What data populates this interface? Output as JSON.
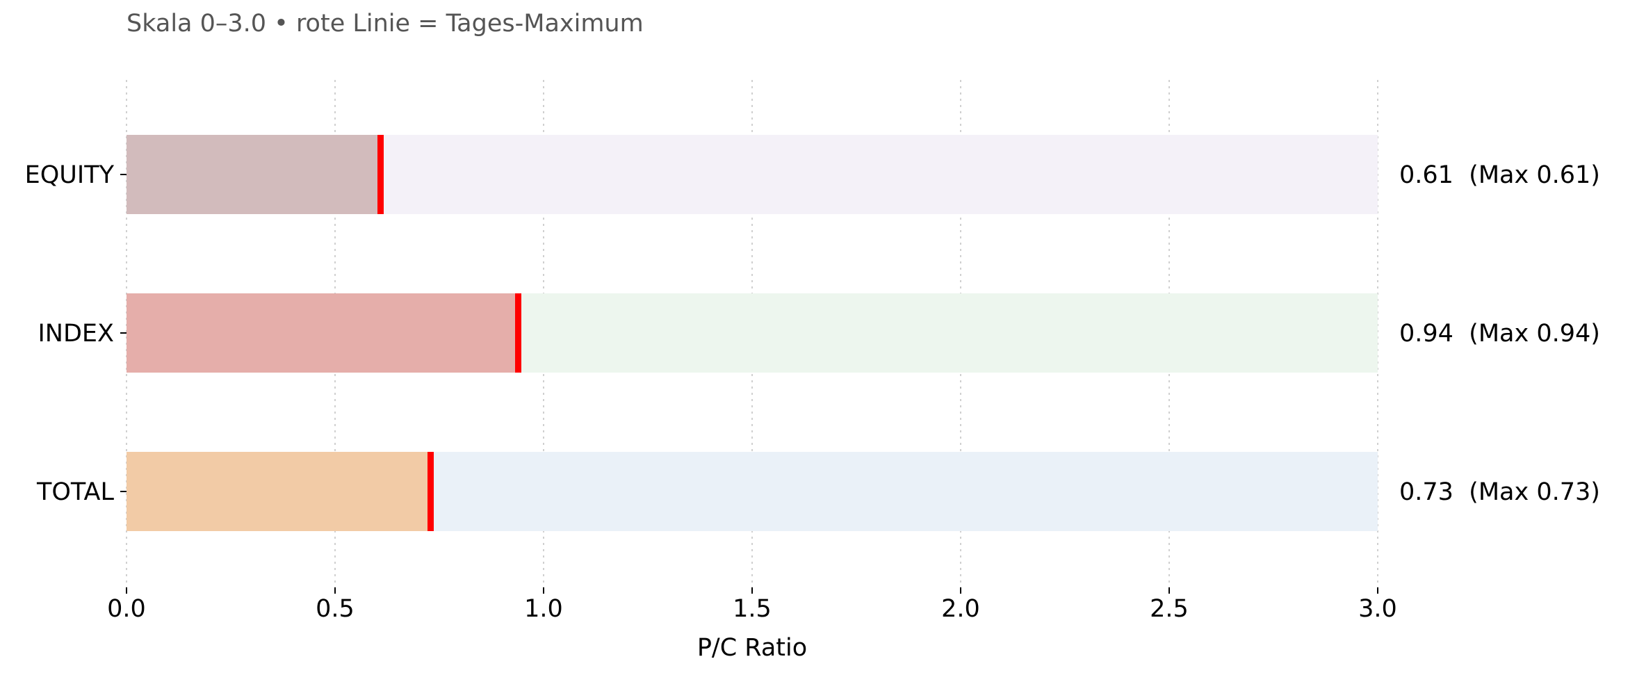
{
  "chart_data": {
    "type": "bar",
    "orientation": "horizontal",
    "subtitle": "Skala 0–3.0 • rote Linie = Tages-Maximum",
    "xlabel": "P/C Ratio",
    "ylabel": "",
    "xlim": [
      0,
      3.0
    ],
    "xticks": [
      "0.0",
      "0.5",
      "1.0",
      "1.5",
      "2.0",
      "2.5",
      "3.0"
    ],
    "grid": "x dotted",
    "categories": [
      "EQUITY",
      "INDEX",
      "TOTAL"
    ],
    "values": [
      0.61,
      0.94,
      0.73
    ],
    "max_values": [
      0.61,
      0.94,
      0.73
    ],
    "value_labels": [
      "0.61  (Max 0.61)",
      "0.94  (Max 0.94)",
      "0.73  (Max 0.73)"
    ],
    "bar_colors": [
      "#d2bbbc",
      "#e5aeaa",
      "#f2cba6"
    ],
    "track_colors": [
      "#f4f1f8",
      "#edf6ee",
      "#eaf1f8"
    ],
    "max_line_color": "#ff0000"
  }
}
